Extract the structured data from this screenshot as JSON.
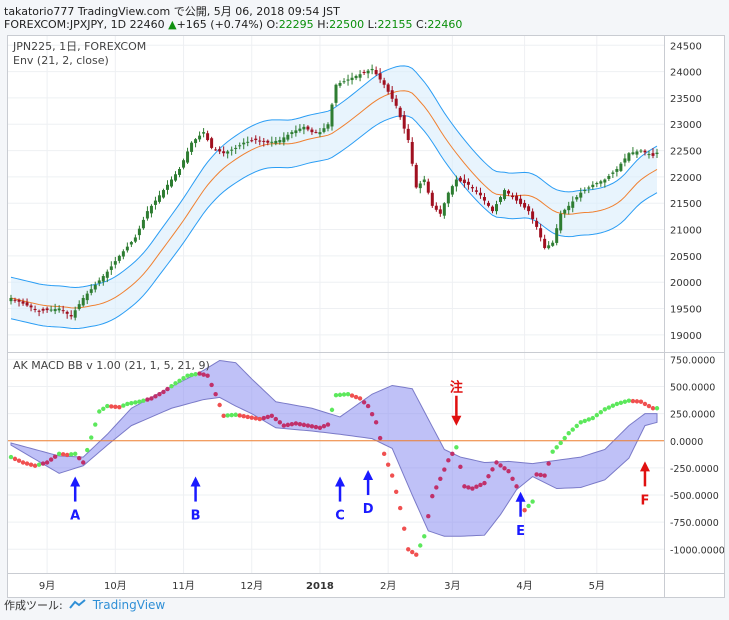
{
  "header": {
    "line1": "takatorio777 TradingView.com で公開, 5月 06, 2018 09:54 JST",
    "symbol": "FOREXCOM:JPXJPY, 1D",
    "last": "22460",
    "change_arrow": "▲",
    "change": "+165 (+0.74%)",
    "o_label": "O:",
    "o": "22295",
    "h_label": "H:",
    "h": "22500",
    "l_label": "L:",
    "l": "22155",
    "c_label": "C:",
    "c": "22460"
  },
  "footer": {
    "label": "作成ツール:",
    "brand": "TradingView"
  },
  "colors": {
    "up": "#2e7d32",
    "down": "#a01020",
    "env_band": "#2a9df4",
    "env_mid": "#f08030",
    "macd_fill": "#8a8ef0",
    "macd_line": "#7a7ac8",
    "zero": "#f08030",
    "dot_up": "#5ce85c",
    "dot_down": "#f05050",
    "dot_mix": "#c0306a",
    "arrow_blue": "#1a1aff",
    "arrow_red": "#e01010"
  },
  "chart_data": [
    {
      "type": "candlestick",
      "title": "JPN225, 1日, FOREXCOM",
      "subtitle": "Env (21, 2, close)",
      "ylim": [
        18750,
        24600
      ],
      "y_ticks": [
        "24500",
        "24000",
        "23500",
        "23000",
        "22500",
        "22000",
        "21500",
        "21000",
        "20500",
        "20000",
        "19500",
        "19000"
      ],
      "price_anchors": [
        [
          0,
          19700
        ],
        [
          7,
          19450
        ],
        [
          12,
          19500
        ],
        [
          15,
          19350
        ],
        [
          18,
          19700
        ],
        [
          21,
          19950
        ],
        [
          24,
          20200
        ],
        [
          27,
          20500
        ],
        [
          31,
          20850
        ],
        [
          34,
          21350
        ],
        [
          37,
          21650
        ],
        [
          40,
          21950
        ],
        [
          42,
          22150
        ],
        [
          45,
          22650
        ],
        [
          48,
          22850
        ],
        [
          50,
          22550
        ],
        [
          53,
          22450
        ],
        [
          56,
          22550
        ],
        [
          58,
          22650
        ],
        [
          61,
          22700
        ],
        [
          64,
          22650
        ],
        [
          67,
          22700
        ],
        [
          70,
          22850
        ],
        [
          73,
          22950
        ],
        [
          75,
          22850
        ],
        [
          77,
          22850
        ],
        [
          79,
          23000
        ],
        [
          81,
          23750
        ],
        [
          84,
          23850
        ],
        [
          87,
          23950
        ],
        [
          90,
          24050
        ],
        [
          93,
          23750
        ],
        [
          96,
          23350
        ],
        [
          99,
          22700
        ],
        [
          101,
          21800
        ],
        [
          103,
          21950
        ],
        [
          105,
          21450
        ],
        [
          107,
          21300
        ],
        [
          109,
          21700
        ],
        [
          111,
          21950
        ],
        [
          114,
          21850
        ],
        [
          117,
          21650
        ],
        [
          120,
          21350
        ],
        [
          123,
          21750
        ],
        [
          126,
          21550
        ],
        [
          129,
          21350
        ],
        [
          131,
          21050
        ],
        [
          133,
          20650
        ],
        [
          135,
          20750
        ],
        [
          137,
          21300
        ],
        [
          139,
          21450
        ],
        [
          142,
          21700
        ],
        [
          145,
          21850
        ],
        [
          148,
          21950
        ],
        [
          151,
          22150
        ],
        [
          154,
          22450
        ],
        [
          157,
          22500
        ],
        [
          160,
          22400
        ],
        [
          161,
          22460
        ]
      ]
    },
    {
      "type": "line",
      "title": "AK MACD BB v 1.00 (21, 1, 5, 21, 9)",
      "ylim": [
        -1200,
        800
      ],
      "y_ticks": [
        "750.0000",
        "500.0000",
        "250.0000",
        "0.0000",
        "-250.0000",
        "-500.0000",
        "-750.0000",
        "-1000.0000"
      ],
      "zero_line": 0,
      "macd_anchors": [
        [
          0,
          -150
        ],
        [
          3,
          -200
        ],
        [
          6,
          -230
        ],
        [
          9,
          -200
        ],
        [
          12,
          -120
        ],
        [
          14,
          -130
        ],
        [
          16,
          -120
        ],
        [
          18,
          -200
        ],
        [
          20,
          30
        ],
        [
          22,
          270
        ],
        [
          24,
          320
        ],
        [
          27,
          310
        ],
        [
          29,
          340
        ],
        [
          32,
          360
        ],
        [
          35,
          390
        ],
        [
          38,
          450
        ],
        [
          41,
          530
        ],
        [
          44,
          600
        ],
        [
          47,
          620
        ],
        [
          49,
          600
        ],
        [
          51,
          430
        ],
        [
          53,
          230
        ],
        [
          56,
          240
        ],
        [
          59,
          220
        ],
        [
          62,
          200
        ],
        [
          65,
          230
        ],
        [
          68,
          140
        ],
        [
          71,
          160
        ],
        [
          74,
          140
        ],
        [
          77,
          120
        ],
        [
          79,
          150
        ],
        [
          81,
          420
        ],
        [
          84,
          430
        ],
        [
          87,
          390
        ],
        [
          89,
          320
        ],
        [
          91,
          170
        ],
        [
          93,
          -120
        ],
        [
          95,
          -320
        ],
        [
          97,
          -620
        ],
        [
          99,
          -1000
        ],
        [
          101,
          -1050
        ],
        [
          103,
          -880
        ],
        [
          105,
          -510
        ],
        [
          107,
          -350
        ],
        [
          109,
          -180
        ],
        [
          111,
          -60
        ],
        [
          113,
          -420
        ],
        [
          115,
          -440
        ],
        [
          118,
          -390
        ],
        [
          121,
          -200
        ],
        [
          124,
          -280
        ],
        [
          126,
          -420
        ],
        [
          128,
          -640
        ],
        [
          130,
          -560
        ],
        [
          131,
          -310
        ],
        [
          133,
          -320
        ],
        [
          135,
          -100
        ],
        [
          137,
          -20
        ],
        [
          139,
          70
        ],
        [
          142,
          170
        ],
        [
          145,
          210
        ],
        [
          148,
          290
        ],
        [
          151,
          340
        ],
        [
          154,
          370
        ],
        [
          157,
          360
        ],
        [
          160,
          300
        ],
        [
          161,
          300
        ]
      ],
      "bb_upper_anchors": [
        [
          0,
          -20
        ],
        [
          12,
          -140
        ],
        [
          18,
          -150
        ],
        [
          24,
          60
        ],
        [
          30,
          300
        ],
        [
          40,
          500
        ],
        [
          48,
          650
        ],
        [
          52,
          740
        ],
        [
          56,
          720
        ],
        [
          60,
          570
        ],
        [
          66,
          360
        ],
        [
          75,
          300
        ],
        [
          82,
          220
        ],
        [
          90,
          430
        ],
        [
          95,
          510
        ],
        [
          100,
          480
        ],
        [
          104,
          200
        ],
        [
          108,
          -80
        ],
        [
          112,
          -150
        ],
        [
          118,
          -200
        ],
        [
          124,
          -190
        ],
        [
          130,
          -210
        ],
        [
          136,
          -180
        ],
        [
          142,
          -150
        ],
        [
          148,
          -80
        ],
        [
          154,
          140
        ],
        [
          158,
          250
        ],
        [
          161,
          250
        ]
      ],
      "bb_lower_anchors": [
        [
          0,
          -40
        ],
        [
          12,
          -300
        ],
        [
          18,
          -230
        ],
        [
          24,
          -40
        ],
        [
          30,
          140
        ],
        [
          40,
          300
        ],
        [
          48,
          380
        ],
        [
          52,
          400
        ],
        [
          56,
          320
        ],
        [
          60,
          250
        ],
        [
          66,
          120
        ],
        [
          75,
          90
        ],
        [
          82,
          60
        ],
        [
          90,
          20
        ],
        [
          95,
          -70
        ],
        [
          100,
          -500
        ],
        [
          104,
          -830
        ],
        [
          108,
          -880
        ],
        [
          112,
          -880
        ],
        [
          118,
          -870
        ],
        [
          122,
          -680
        ],
        [
          126,
          -450
        ],
        [
          130,
          -330
        ],
        [
          136,
          -440
        ],
        [
          142,
          -430
        ],
        [
          148,
          -360
        ],
        [
          154,
          -160
        ],
        [
          158,
          140
        ],
        [
          161,
          170
        ]
      ],
      "annotations": [
        {
          "label": "A",
          "idx": 16
        },
        {
          "label": "B",
          "idx": 46
        },
        {
          "label": "C",
          "idx": 82
        },
        {
          "label": "D",
          "idx": 89
        },
        {
          "label": "注",
          "idx": 111
        },
        {
          "label": "E",
          "idx": 127
        },
        {
          "label": "F",
          "idx": 158
        }
      ]
    }
  ],
  "x_axis": {
    "ticks": [
      {
        "label": "9月",
        "idx": 9
      },
      {
        "label": "10月",
        "idx": 26
      },
      {
        "label": "11月",
        "idx": 43
      },
      {
        "label": "12月",
        "idx": 60
      },
      {
        "label": "2018",
        "idx": 77
      },
      {
        "label": "2月",
        "idx": 94
      },
      {
        "label": "3月",
        "idx": 110
      },
      {
        "label": "4月",
        "idx": 128
      },
      {
        "label": "5月",
        "idx": 146
      }
    ]
  }
}
